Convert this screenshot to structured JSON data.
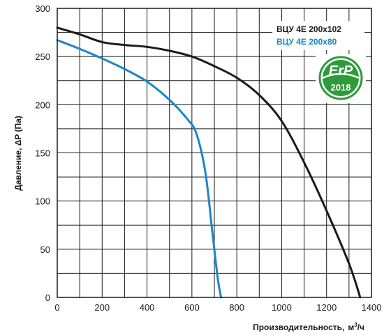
{
  "chart_data": {
    "type": "line",
    "title": "",
    "xlabel": "Производительность,",
    "xlabel_unit_base": "м",
    "xlabel_unit_sup": "3",
    "xlabel_unit_tail": "/ч",
    "ylabel": "Давление, ΔP (Па)",
    "xlim": [
      0,
      1400
    ],
    "ylim": [
      0,
      300
    ],
    "x_ticks": [
      "0",
      "200",
      "400",
      "600",
      "800",
      "1000",
      "1200",
      "1400"
    ],
    "y_ticks": [
      "0",
      "50",
      "100",
      "150",
      "200",
      "250",
      "300"
    ],
    "grid": true,
    "legend_position": "top-right",
    "series": [
      {
        "name": "ВЦУ 4Е 200x102",
        "color": "#1a1a1a",
        "points": [
          [
            0,
            280
          ],
          [
            100,
            273
          ],
          [
            200,
            265
          ],
          [
            300,
            262
          ],
          [
            400,
            260
          ],
          [
            500,
            256
          ],
          [
            600,
            250
          ],
          [
            700,
            240
          ],
          [
            800,
            228
          ],
          [
            900,
            210
          ],
          [
            1000,
            183
          ],
          [
            1100,
            140
          ],
          [
            1200,
            90
          ],
          [
            1300,
            35
          ],
          [
            1350,
            0
          ]
        ]
      },
      {
        "name": "ВЦУ 4Е 200x80",
        "color": "#1a86c8",
        "points": [
          [
            0,
            267
          ],
          [
            100,
            258
          ],
          [
            200,
            248
          ],
          [
            300,
            237
          ],
          [
            400,
            224
          ],
          [
            500,
            205
          ],
          [
            580,
            185
          ],
          [
            620,
            170
          ],
          [
            660,
            130
          ],
          [
            690,
            70
          ],
          [
            715,
            20
          ],
          [
            730,
            0
          ]
        ]
      }
    ]
  },
  "badge": {
    "icon": "erp-2018-badge-icon",
    "text_top": "ErP",
    "text_bottom": "2018",
    "color": "#2e9a3a"
  }
}
